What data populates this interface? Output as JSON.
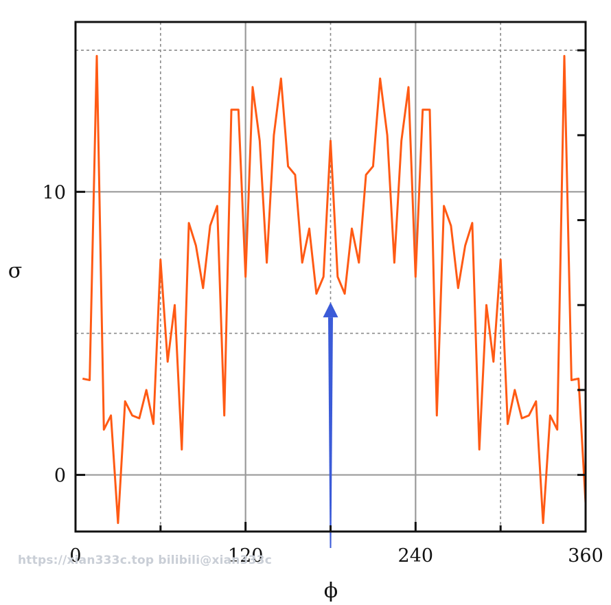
{
  "chart_data": {
    "type": "line",
    "title": "",
    "xlabel": "ϕ",
    "ylabel": "σ",
    "xlim": [
      0,
      360
    ],
    "ylim": [
      -2,
      16
    ],
    "x_ticks": [
      0,
      120,
      240,
      360
    ],
    "x_tick_labels": [
      "0",
      "120",
      "240",
      "360"
    ],
    "x_minor_grid": [
      60,
      180,
      300
    ],
    "y_ticks": [
      0,
      10
    ],
    "y_tick_labels": [
      "0",
      "10"
    ],
    "y_minor_grid": [
      5,
      15
    ],
    "right_ticks": [
      0,
      3,
      6,
      9,
      12,
      15
    ],
    "grid": true,
    "series": [
      {
        "color": "#ff5a14",
        "x": [
          5,
          10,
          15,
          20,
          25,
          30,
          35,
          40,
          45,
          50,
          55,
          60,
          65,
          70,
          75,
          80,
          85,
          90,
          95,
          100,
          105,
          110,
          115,
          120,
          125,
          130,
          135,
          140,
          145,
          150,
          155,
          160,
          165,
          170,
          175,
          180,
          185,
          190,
          195,
          200,
          205,
          210,
          215,
          220,
          225,
          230,
          235,
          240,
          245,
          250,
          255,
          260,
          265,
          270,
          275,
          280,
          285,
          290,
          295,
          300,
          305,
          310,
          315,
          320,
          325,
          330,
          335,
          340,
          345,
          350,
          355,
          360
        ],
        "y": [
          3.4,
          3.35,
          14.8,
          1.6,
          2.1,
          -1.7,
          2.6,
          2.1,
          2.0,
          3.0,
          1.8,
          7.6,
          4.0,
          6.0,
          0.9,
          8.9,
          8.1,
          6.6,
          8.8,
          9.5,
          2.1,
          12.9,
          12.9,
          7.0,
          13.7,
          11.8,
          7.5,
          12.0,
          14.0,
          10.9,
          10.6,
          7.5,
          8.7,
          6.4,
          7.0,
          11.8,
          7.0,
          6.4,
          8.7,
          7.5,
          10.6,
          10.9,
          14.0,
          12.0,
          7.5,
          11.8,
          13.7,
          7.0,
          12.9,
          12.9,
          2.1,
          9.5,
          8.8,
          6.6,
          8.1,
          8.9,
          0.9,
          6.0,
          4.0,
          7.6,
          1.8,
          3.0,
          2.0,
          2.1,
          2.6,
          -1.7,
          2.1,
          1.6,
          14.8,
          3.35,
          3.4,
          -1.0
        ]
      }
    ],
    "annotation": {
      "type": "arrow",
      "color": "#3b5bd8",
      "x": 180,
      "y_from": -2.6,
      "y_to": 6.1
    }
  },
  "watermark": "https://xian333c.top bilibili@xian333c"
}
